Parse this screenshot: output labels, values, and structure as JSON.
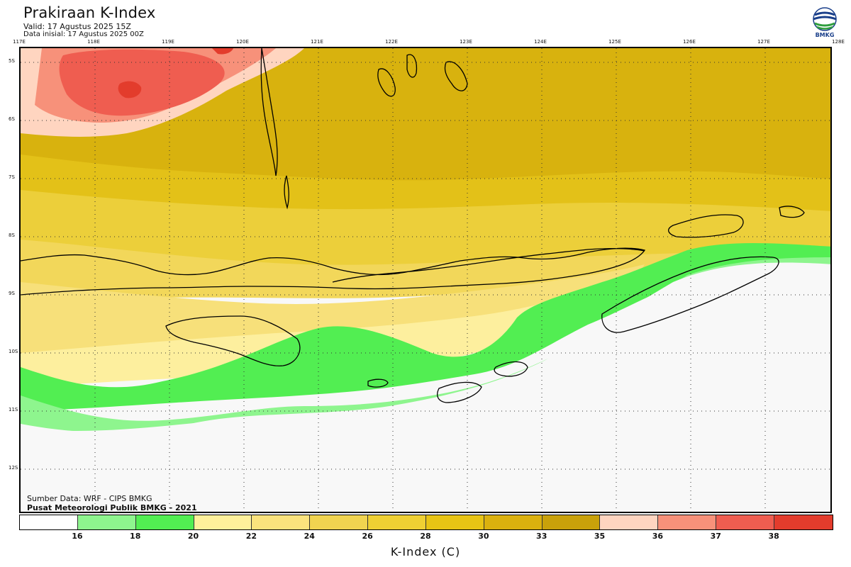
{
  "header": {
    "title": "Prakiraan K-Index",
    "valid": "Valid: 17 Agustus 2025 15Z",
    "initial": "Data inisial: 17 Agustus 2025 00Z"
  },
  "logo": {
    "text": "BMKG",
    "icon": "bmkg-logo-icon",
    "color": "#1a3f8a"
  },
  "map": {
    "lon_labels": [
      "117E",
      "118E",
      "119E",
      "120E",
      "121E",
      "122E",
      "123E",
      "124E",
      "125E",
      "126E",
      "127E",
      "128E"
    ],
    "lat_labels": [
      "5S",
      "6S",
      "7S",
      "8S",
      "9S",
      "10S",
      "11S",
      "12S"
    ],
    "lon_range": [
      117,
      128
    ],
    "lat_range": [
      -4.8,
      -12.8
    ],
    "gridlines": "dotted"
  },
  "credits": {
    "source": "Sumber Data: WRF - CIPS BMKG",
    "publisher": "Pusat Meteorologi Publik BMKG - 2021"
  },
  "colorbar": {
    "title": "K-Index (C)",
    "ticks": [
      "16",
      "18",
      "20",
      "22",
      "24",
      "26",
      "28",
      "30",
      "33",
      "35",
      "36",
      "37",
      "38"
    ],
    "colors": [
      "#ffffff",
      "#8ef58e",
      "#52ee52",
      "#fff19b",
      "#fbe37d",
      "#f1d450",
      "#efd033",
      "#e8c414",
      "#dbb10e",
      "#c9a10a",
      "#ffd5c0",
      "#f7917a",
      "#ef5d50",
      "#e33c2c"
    ]
  }
}
